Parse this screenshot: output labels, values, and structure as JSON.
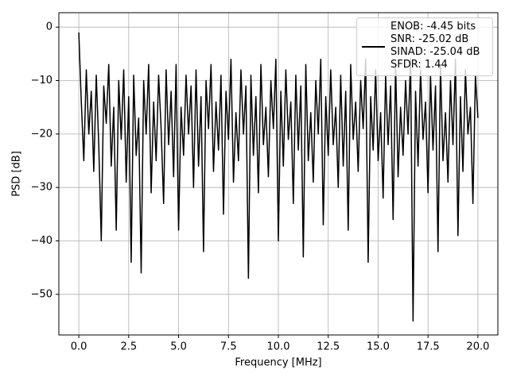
{
  "chart_data": {
    "type": "line",
    "xlabel": "Frequency [MHz]",
    "ylabel": "PSD [dB]",
    "xlim": [
      -1,
      21
    ],
    "ylim": [
      -57.6,
      2.7
    ],
    "xticks": [
      {
        "value": 0,
        "label": "0.0"
      },
      2.5,
      {
        "value": 5,
        "label": "5.0"
      },
      7.5,
      {
        "value": 10,
        "label": "10.0"
      },
      12.5,
      {
        "value": 15,
        "label": "15.0"
      },
      17.5,
      {
        "value": 20,
        "label": "20.0"
      }
    ],
    "yticks": [
      0,
      {
        "value": -10,
        "label": "−10"
      },
      {
        "value": -20,
        "label": "−20"
      },
      {
        "value": -30,
        "label": "−30"
      },
      {
        "value": -40,
        "label": "−40"
      },
      {
        "value": -50,
        "label": "−50"
      }
    ],
    "grid": true,
    "legend": "upper right",
    "x": [
      0,
      0.125,
      0.25,
      0.375,
      0.5,
      0.625,
      0.75,
      0.875,
      1,
      1.125,
      1.25,
      1.375,
      1.5,
      1.625,
      1.75,
      1.875,
      2,
      2.125,
      2.25,
      2.375,
      2.5,
      2.625,
      2.75,
      2.875,
      3,
      3.125,
      3.25,
      3.375,
      3.5,
      3.625,
      3.75,
      3.875,
      4,
      4.125,
      4.25,
      4.375,
      4.5,
      4.625,
      4.75,
      4.875,
      5,
      5.125,
      5.25,
      5.375,
      5.5,
      5.625,
      5.75,
      5.875,
      6,
      6.125,
      6.25,
      6.375,
      6.5,
      6.625,
      6.75,
      6.875,
      7,
      7.125,
      7.25,
      7.375,
      7.5,
      7.625,
      7.75,
      7.875,
      8,
      8.125,
      8.25,
      8.375,
      8.5,
      8.625,
      8.75,
      8.875,
      9,
      9.125,
      9.25,
      9.375,
      9.5,
      9.625,
      9.75,
      9.875,
      10,
      10.125,
      10.25,
      10.375,
      10.5,
      10.625,
      10.75,
      10.875,
      11,
      11.125,
      11.25,
      11.375,
      11.5,
      11.625,
      11.75,
      11.875,
      12,
      12.125,
      12.25,
      12.375,
      12.5,
      12.625,
      12.75,
      12.875,
      13,
      13.125,
      13.25,
      13.375,
      13.5,
      13.625,
      13.75,
      13.875,
      14,
      14.125,
      14.25,
      14.375,
      14.5,
      14.625,
      14.75,
      14.875,
      15,
      15.125,
      15.25,
      15.375,
      15.5,
      15.625,
      15.75,
      15.875,
      16,
      16.125,
      16.25,
      16.375,
      16.5,
      16.625,
      16.75,
      16.875,
      17,
      17.125,
      17.25,
      17.375,
      17.5,
      17.625,
      17.75,
      17.875,
      18,
      18.125,
      18.25,
      18.375,
      18.5,
      18.625,
      18.75,
      18.875,
      19,
      19.125,
      19.25,
      19.375,
      19.5,
      19.625,
      19.75,
      19.875,
      20
    ],
    "series": [
      {
        "name": "ENOB: -4.45 bits\nSNR: -25.02 dB\nSINAD: -25.04 dB\nSFDR: 1.44",
        "color": "#000000",
        "values": [
          -1,
          -14,
          -25,
          -8,
          -20,
          -12,
          -27,
          -9,
          -22,
          -40,
          -11,
          -18,
          -7,
          -26,
          -15,
          -38,
          -10,
          -21,
          -8,
          -29,
          -13,
          -44,
          -9,
          -24,
          -17,
          -46,
          -10,
          -20,
          -7,
          -31,
          -14,
          -25,
          -9,
          -19,
          -33,
          -8,
          -22,
          -12,
          -28,
          -7,
          -38,
          -15,
          -24,
          -9,
          -20,
          -11,
          -30,
          -8,
          -26,
          -13,
          -42,
          -10,
          -19,
          -7,
          -27,
          -14,
          -23,
          -9,
          -35,
          -12,
          -21,
          -6,
          -29,
          -16,
          -25,
          -8,
          -20,
          -11,
          -47,
          -9,
          -24,
          -13,
          -31,
          -7,
          -22,
          -15,
          -28,
          -10,
          -19,
          -6,
          -40,
          -12,
          -26,
          -8,
          -21,
          -14,
          -33,
          -9,
          -23,
          -11,
          -43,
          -7,
          -25,
          -16,
          -29,
          -10,
          -20,
          -6,
          -37,
          -13,
          -24,
          -8,
          -22,
          -15,
          -30,
          -9,
          -26,
          -12,
          -38,
          -7,
          -21,
          -14,
          -27,
          -10,
          -19,
          -6,
          -44,
          -13,
          -23,
          -8,
          -25,
          -16,
          -32,
          -9,
          -22,
          -11,
          -36,
          -7,
          -28,
          -15,
          -24,
          -10,
          -20,
          -6,
          -55,
          -12,
          -26,
          -8,
          -21,
          -14,
          -31,
          -9,
          -23,
          -11,
          -42,
          -7,
          -25,
          -16,
          -29,
          -10,
          -22,
          -6,
          -39,
          -13,
          -27,
          -8,
          -20,
          -15,
          -33,
          -9,
          -17
        ]
      }
    ]
  }
}
